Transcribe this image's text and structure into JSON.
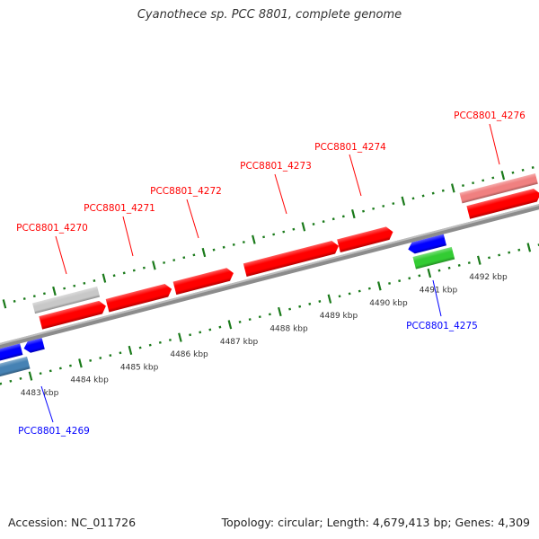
{
  "title": "Cyanothece sp. PCC 8801, complete genome",
  "footer": {
    "accession": "Accession: NC_011726",
    "topology": "Topology: circular; Length: 4,679,413 bp; Genes: 4,309"
  },
  "scale": {
    "unit": "kbp",
    "major_ticks": [
      4483,
      4484,
      4485,
      4486,
      4487,
      4488,
      4489,
      4490,
      4491,
      4492
    ],
    "tick_labels": [
      "4483 kbp",
      "4484 kbp",
      "4485 kbp",
      "4486 kbp",
      "4487 kbp",
      "4488 kbp",
      "4489 kbp",
      "4490 kbp",
      "4491 kbp",
      "4492 kbp"
    ],
    "range_kbp": [
      4482.2,
      4493.5
    ]
  },
  "colors": {
    "forward_label": "#ff0000",
    "reverse_label": "#0000ff",
    "tick": "#1a7a1a",
    "backbone": "#8c8c8c"
  },
  "features": [
    {
      "id": "f1",
      "strand": "-",
      "row": 1,
      "start": 4482.15,
      "end": 4482.96,
      "color": "#0000ff"
    },
    {
      "id": "f2",
      "strand": "-",
      "row": 2,
      "start": 4482.15,
      "end": 4483.03,
      "color": "#4682b4"
    },
    {
      "id": "f3",
      "strand": "-",
      "row": 1,
      "start": 4483.01,
      "end": 4483.4,
      "color": "#0000ff"
    },
    {
      "id": "f4",
      "strand": "+",
      "row": 2,
      "start": 4483.39,
      "end": 4484.69,
      "color": "#c8c8c8"
    },
    {
      "id": "PCC8801_4270",
      "strand": "+",
      "row": 1,
      "start": 4483.45,
      "end": 4484.76,
      "color": "#ff0000",
      "label": "PCC8801_4270"
    },
    {
      "id": "PCC8801_4271",
      "strand": "+",
      "row": 1,
      "start": 4484.79,
      "end": 4486.08,
      "color": "#ff0000",
      "label": "PCC8801_4271"
    },
    {
      "id": "PCC8801_4272",
      "strand": "+",
      "row": 1,
      "start": 4486.14,
      "end": 4487.32,
      "color": "#ff0000",
      "label": "PCC8801_4272"
    },
    {
      "id": "PCC8801_4273",
      "strand": "+",
      "row": 1,
      "start": 4487.55,
      "end": 4489.43,
      "color": "#ff0000",
      "label": "PCC8801_4273"
    },
    {
      "id": "PCC8801_4274",
      "strand": "+",
      "row": 1,
      "start": 4489.43,
      "end": 4490.52,
      "color": "#ff0000",
      "label": "PCC8801_4274"
    },
    {
      "id": "PCC8801_4275",
      "strand": "-",
      "row": 1,
      "start": 4490.72,
      "end": 4491.46,
      "color": "#0000ff",
      "label": "PCC8801_4275"
    },
    {
      "id": "f5",
      "strand": "-",
      "row": 2,
      "start": 4490.77,
      "end": 4491.55,
      "color": "#33cc33"
    },
    {
      "id": "f6",
      "strand": "+",
      "row": 2,
      "start": 4491.96,
      "end": 4493.48,
      "color": "#f08080"
    },
    {
      "id": "PCC8801_4276",
      "strand": "+",
      "row": 1,
      "start": 4492.03,
      "end": 4493.48,
      "color": "#ff0000",
      "label": "PCC8801_4276"
    }
  ],
  "labels": [
    {
      "text": "PCC8801_4270",
      "strand": "+"
    },
    {
      "text": "PCC8801_4271",
      "strand": "+"
    },
    {
      "text": "PCC8801_4272",
      "strand": "+"
    },
    {
      "text": "PCC8801_4273",
      "strand": "+"
    },
    {
      "text": "PCC8801_4274",
      "strand": "+"
    },
    {
      "text": "PCC8801_4276",
      "strand": "+"
    },
    {
      "text": "PCC8801_4275",
      "strand": "-"
    },
    {
      "text": "PCC8801_4269",
      "strand": "-"
    }
  ]
}
